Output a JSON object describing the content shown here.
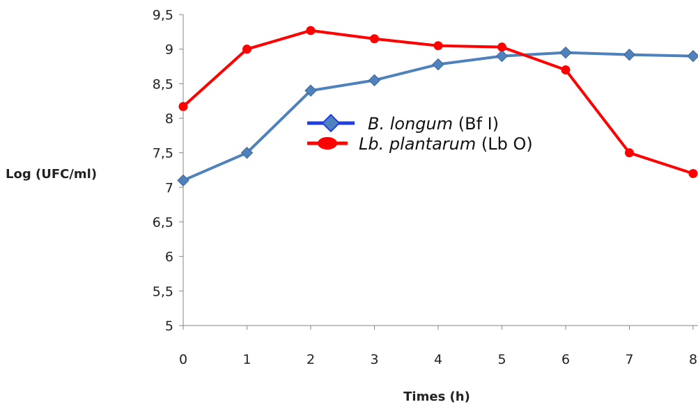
{
  "chart_data": {
    "type": "line",
    "xlabel": "Times (h)",
    "ylabel": "Log (UFC/ml)",
    "x": [
      0,
      1,
      2,
      3,
      4,
      5,
      6,
      7,
      8
    ],
    "x_tick_labels": [
      "0",
      "1",
      "2",
      "3",
      "4",
      "5",
      "6",
      "7",
      "8"
    ],
    "ylim": [
      5,
      9.5
    ],
    "y_ticks": [
      5,
      5.5,
      6,
      6.5,
      7,
      7.5,
      8,
      8.5,
      9,
      9.5
    ],
    "y_tick_labels": [
      "5",
      "5,5",
      "6",
      "6,5",
      "7",
      "7,5",
      "8",
      "8,5",
      "9",
      "9,5"
    ],
    "grid": false,
    "legend_position": "center",
    "series": [
      {
        "legend_italic": "B. longum",
        "legend_suffix": " (Bf I)",
        "color": "#4f81bd",
        "legend_color": "#1f3fe0",
        "marker": "diamond",
        "values": [
          7.1,
          7.5,
          8.4,
          8.55,
          8.78,
          8.9,
          8.95,
          8.92,
          8.9
        ]
      },
      {
        "legend_italic": "Lb. plantarum",
        "legend_suffix": " (Lb O)",
        "color": "#ff0000",
        "legend_color": "#ff0000",
        "marker": "circle",
        "values": [
          8.17,
          9.0,
          9.27,
          9.15,
          9.05,
          9.03,
          8.7,
          7.5,
          7.2
        ]
      }
    ]
  }
}
